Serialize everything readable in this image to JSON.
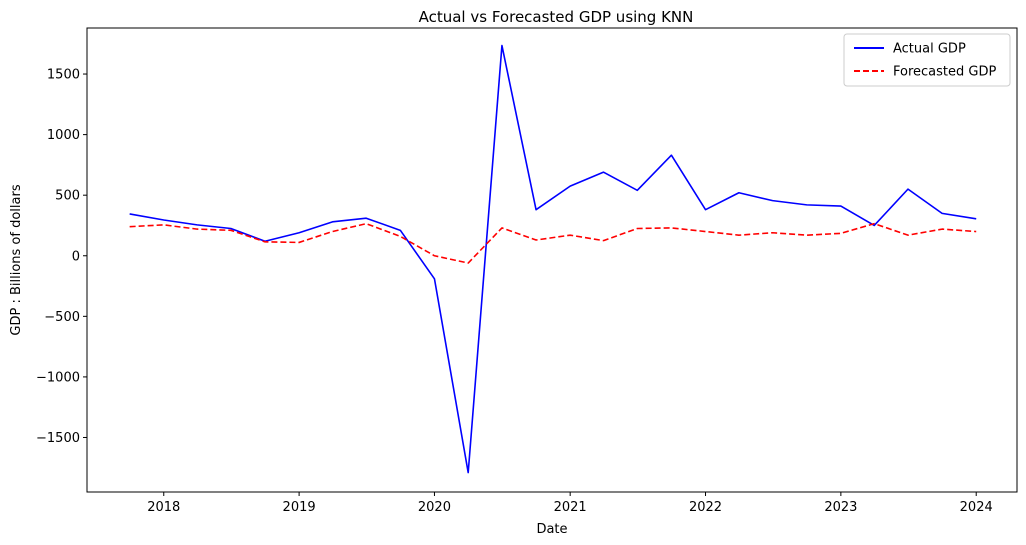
{
  "chart_data": {
    "type": "line",
    "title": "Actual vs Forecasted GDP using KNN",
    "xlabel": "Date",
    "ylabel": "GDP : Billions of dollars",
    "xlim": [
      "2017-06-08",
      "2024-04-20"
    ],
    "ylim": [
      -1950,
      1880
    ],
    "x_ticks": [
      "2018",
      "2019",
      "2020",
      "2021",
      "2022",
      "2023",
      "2024"
    ],
    "y_ticks": [
      -1500,
      -1000,
      -500,
      0,
      500,
      1000,
      1500
    ],
    "grid": false,
    "legend_position": "top-right",
    "x": [
      "2017-10-01",
      "2018-01-01",
      "2018-04-01",
      "2018-07-01",
      "2018-10-01",
      "2019-01-01",
      "2019-04-01",
      "2019-07-01",
      "2019-10-01",
      "2020-01-01",
      "2020-04-01",
      "2020-07-01",
      "2020-10-01",
      "2021-01-01",
      "2021-04-01",
      "2021-07-01",
      "2021-10-01",
      "2022-01-01",
      "2022-04-01",
      "2022-07-01",
      "2022-10-01",
      "2023-01-01",
      "2023-04-01",
      "2023-07-01",
      "2023-10-01",
      "2024-01-01"
    ],
    "series": [
      {
        "name": "Actual GDP",
        "color": "#0000ff",
        "style": "solid",
        "values": [
          345,
          295,
          255,
          225,
          120,
          190,
          280,
          310,
          210,
          -190,
          -1790,
          1735,
          380,
          575,
          690,
          540,
          830,
          380,
          520,
          455,
          420,
          410,
          250,
          550,
          350,
          305
        ]
      },
      {
        "name": "Forecasted GDP",
        "color": "#ff0000",
        "style": "dashed",
        "values": [
          240,
          255,
          220,
          210,
          115,
          110,
          200,
          265,
          160,
          0,
          -60,
          230,
          130,
          170,
          125,
          225,
          230,
          200,
          170,
          190,
          170,
          185,
          265,
          170,
          220,
          200
        ]
      }
    ]
  }
}
